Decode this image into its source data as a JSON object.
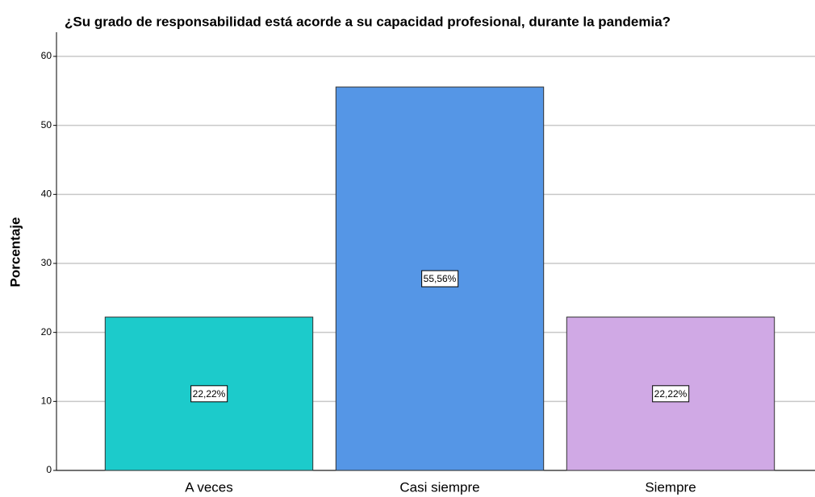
{
  "chart_data": {
    "type": "bar",
    "title": "¿Su grado de responsabilidad está acorde a su capacidad profesional, durante la pandemia?",
    "ylabel": "Porcentaje",
    "categories": [
      "A veces",
      "Casi siempre",
      "Siempre"
    ],
    "values": [
      22.22,
      55.56,
      22.22
    ],
    "value_labels": [
      "22,22%",
      "55,56%",
      "22,22%"
    ],
    "colors": [
      "#1ccbcb",
      "#5596e6",
      "#d0a9e5"
    ],
    "ylim": [
      0,
      63.5
    ],
    "yticks": [
      0,
      10,
      20,
      30,
      40,
      50,
      60
    ],
    "grid": true
  }
}
